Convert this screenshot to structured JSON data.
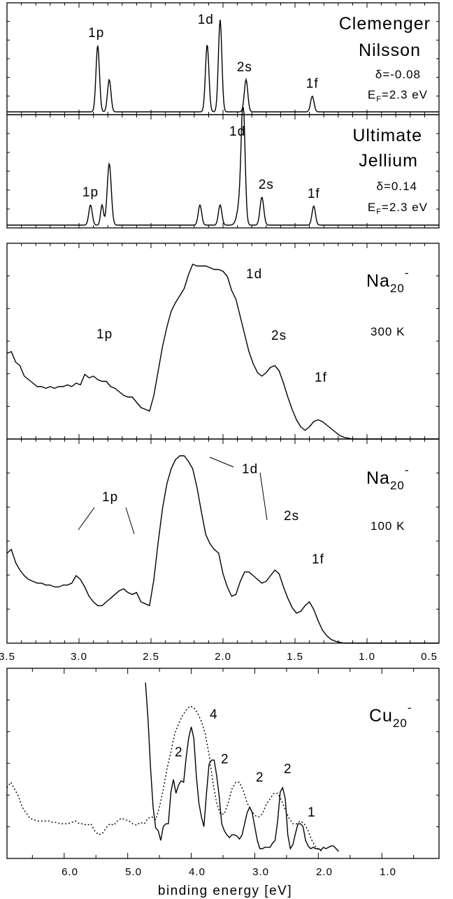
{
  "chart_data": [
    {
      "type": "line",
      "panel": "clemenger-nilsson",
      "annotations": [
        "Clemenger",
        "Nilsson"
      ],
      "delta": "δ=-0.08",
      "ef_main": "E",
      "ef_sub": "F",
      "ef_val": "=2.3 eV",
      "x_range": [
        3.5,
        0.5
      ],
      "peaks": [
        {
          "x": 2.87,
          "h": 0.72,
          "w": 0.012
        },
        {
          "x": 2.79,
          "h": 0.35,
          "w": 0.012
        },
        {
          "x": 2.11,
          "h": 0.73,
          "w": 0.012
        },
        {
          "x": 2.02,
          "h": 1.0,
          "w": 0.012
        },
        {
          "x": 1.84,
          "h": 0.35,
          "w": 0.012
        },
        {
          "x": 1.38,
          "h": 0.17,
          "w": 0.012
        }
      ],
      "peak_labels": [
        {
          "x": 2.88,
          "text": "1p"
        },
        {
          "x": 2.12,
          "text": "1d"
        },
        {
          "x": 1.85,
          "text": "2s"
        },
        {
          "x": 1.38,
          "text": "1f"
        }
      ]
    },
    {
      "type": "line",
      "panel": "ultimate-jellium",
      "annotations": [
        "Ultimate",
        "Jellium"
      ],
      "delta": "δ=0.14",
      "ef_main": "E",
      "ef_sub": "F",
      "ef_val": "=2.3 eV",
      "x_range": [
        3.5,
        0.5
      ],
      "peaks": [
        {
          "x": 2.92,
          "h": 0.18,
          "w": 0.012
        },
        {
          "x": 2.79,
          "h": 0.55,
          "w": 0.014
        },
        {
          "x": 2.84,
          "h": 0.18,
          "w": 0.01
        },
        {
          "x": 2.16,
          "h": 0.18,
          "w": 0.012
        },
        {
          "x": 2.02,
          "h": 0.18,
          "w": 0.012
        },
        {
          "x": 1.86,
          "h": 1.0,
          "w": 0.013
        },
        {
          "x": 1.88,
          "h": 0.2,
          "w": 0.02
        },
        {
          "x": 1.73,
          "h": 0.25,
          "w": 0.013
        },
        {
          "x": 1.37,
          "h": 0.17,
          "w": 0.012
        }
      ],
      "peak_labels": [
        {
          "x": 2.92,
          "text": "1p"
        },
        {
          "x": 1.9,
          "text": "1d"
        },
        {
          "x": 1.7,
          "text": "2s"
        },
        {
          "x": 1.37,
          "text": "1f"
        }
      ]
    },
    {
      "type": "line",
      "panel": "na20-300K",
      "species": "Na",
      "species_sub": "20",
      "charge": "-",
      "temperature": "300 K",
      "x_range": [
        3.5,
        0.5
      ],
      "x": [
        3.5,
        3.47,
        3.44,
        3.41,
        3.38,
        3.35,
        3.32,
        3.29,
        3.26,
        3.23,
        3.2,
        3.17,
        3.14,
        3.11,
        3.08,
        3.05,
        3.02,
        2.99,
        2.96,
        2.93,
        2.9,
        2.87,
        2.84,
        2.81,
        2.78,
        2.75,
        2.72,
        2.69,
        2.66,
        2.63,
        2.6,
        2.57,
        2.54,
        2.51,
        2.48,
        2.45,
        2.42,
        2.39,
        2.36,
        2.33,
        2.3,
        2.27,
        2.24,
        2.21,
        2.18,
        2.15,
        2.12,
        2.09,
        2.06,
        2.03,
        2.0,
        1.97,
        1.94,
        1.91,
        1.88,
        1.85,
        1.82,
        1.79,
        1.76,
        1.73,
        1.7,
        1.67,
        1.64,
        1.61,
        1.58,
        1.55,
        1.52,
        1.49,
        1.46,
        1.43,
        1.4,
        1.37,
        1.34,
        1.31,
        1.28,
        1.25,
        1.22,
        1.19,
        1.16,
        1.13,
        1.1,
        1.0,
        0.9,
        0.8,
        0.7,
        0.6,
        0.5
      ],
      "y": [
        0.49,
        0.5,
        0.44,
        0.42,
        0.36,
        0.34,
        0.32,
        0.3,
        0.3,
        0.29,
        0.3,
        0.29,
        0.3,
        0.3,
        0.31,
        0.3,
        0.32,
        0.31,
        0.37,
        0.35,
        0.36,
        0.34,
        0.33,
        0.33,
        0.3,
        0.29,
        0.27,
        0.25,
        0.24,
        0.24,
        0.21,
        0.18,
        0.17,
        0.16,
        0.25,
        0.39,
        0.53,
        0.64,
        0.73,
        0.78,
        0.82,
        0.86,
        0.94,
        1.0,
        0.99,
        0.99,
        0.99,
        0.98,
        0.97,
        0.97,
        0.96,
        0.93,
        0.85,
        0.8,
        0.7,
        0.6,
        0.5,
        0.43,
        0.38,
        0.36,
        0.38,
        0.41,
        0.42,
        0.39,
        0.32,
        0.24,
        0.17,
        0.11,
        0.07,
        0.05,
        0.07,
        0.1,
        0.11,
        0.1,
        0.08,
        0.06,
        0.04,
        0.02,
        0.01,
        0.005,
        0.0,
        0.0,
        0.0,
        0.0,
        0.0,
        0.0,
        0.0
      ],
      "peak_labels": [
        "1p",
        "1d",
        "2s",
        "1f"
      ]
    },
    {
      "type": "line",
      "panel": "na20-100K",
      "species": "Na",
      "species_sub": "20",
      "charge": "-",
      "temperature": "100 K",
      "x_range": [
        3.5,
        0.5
      ],
      "xticks": [
        "3.5",
        "3.0",
        "2.5",
        "2.0",
        "1.5",
        "1.0",
        "0.5"
      ],
      "x": [
        3.5,
        3.47,
        3.44,
        3.41,
        3.38,
        3.35,
        3.32,
        3.29,
        3.26,
        3.23,
        3.2,
        3.17,
        3.14,
        3.11,
        3.08,
        3.05,
        3.02,
        2.99,
        2.96,
        2.93,
        2.9,
        2.87,
        2.84,
        2.81,
        2.78,
        2.75,
        2.72,
        2.69,
        2.66,
        2.63,
        2.6,
        2.57,
        2.54,
        2.51,
        2.48,
        2.45,
        2.42,
        2.39,
        2.36,
        2.33,
        2.3,
        2.27,
        2.24,
        2.21,
        2.18,
        2.15,
        2.12,
        2.09,
        2.06,
        2.03,
        2.0,
        1.97,
        1.94,
        1.91,
        1.88,
        1.85,
        1.82,
        1.79,
        1.76,
        1.73,
        1.7,
        1.67,
        1.64,
        1.61,
        1.58,
        1.55,
        1.52,
        1.49,
        1.46,
        1.43,
        1.4,
        1.37,
        1.34,
        1.31,
        1.28,
        1.25,
        1.22,
        1.19,
        1.16,
        1.13,
        1.1,
        1.0,
        0.9,
        0.8,
        0.7,
        0.6,
        0.5
      ],
      "y": [
        0.48,
        0.5,
        0.43,
        0.39,
        0.36,
        0.34,
        0.33,
        0.32,
        0.32,
        0.31,
        0.31,
        0.3,
        0.3,
        0.31,
        0.31,
        0.32,
        0.36,
        0.34,
        0.3,
        0.25,
        0.22,
        0.2,
        0.2,
        0.22,
        0.24,
        0.26,
        0.28,
        0.29,
        0.27,
        0.26,
        0.27,
        0.22,
        0.21,
        0.2,
        0.34,
        0.54,
        0.72,
        0.85,
        0.93,
        0.98,
        1.0,
        1.0,
        0.97,
        0.93,
        0.83,
        0.7,
        0.58,
        0.53,
        0.5,
        0.48,
        0.37,
        0.3,
        0.25,
        0.26,
        0.33,
        0.38,
        0.38,
        0.36,
        0.34,
        0.32,
        0.33,
        0.36,
        0.39,
        0.37,
        0.3,
        0.24,
        0.19,
        0.16,
        0.17,
        0.2,
        0.22,
        0.18,
        0.12,
        0.07,
        0.04,
        0.02,
        0.01,
        0.005,
        0.0,
        0.0,
        0.0,
        0.0,
        0.0,
        0.0,
        0.0,
        0.0,
        0.0
      ],
      "peak_labels": [
        "1p",
        "1d",
        "2s",
        "1f"
      ]
    },
    {
      "type": "line",
      "panel": "cu20",
      "species": "Cu",
      "species_sub": "20",
      "charge": "-",
      "x_range": [
        6.9,
        0.1
      ],
      "xticks": [
        "6.0",
        "5.0",
        "4.0",
        "3.0",
        "2.0",
        "1.0"
      ],
      "xlabel": "binding energy [eV]",
      "count_labels": [
        "2",
        "4",
        "2",
        "2",
        "2",
        "1"
      ],
      "series": [
        {
          "style": "solid",
          "x": [
            4.72,
            4.68,
            4.64,
            4.6,
            4.56,
            4.52,
            4.48,
            4.44,
            4.4,
            4.36,
            4.32,
            4.28,
            4.24,
            4.2,
            4.16,
            4.12,
            4.08,
            4.04,
            4.0,
            3.96,
            3.92,
            3.88,
            3.84,
            3.8,
            3.76,
            3.72,
            3.68,
            3.64,
            3.6,
            3.56,
            3.52,
            3.48,
            3.44,
            3.4,
            3.36,
            3.32,
            3.28,
            3.24,
            3.2,
            3.16,
            3.12,
            3.08,
            3.04,
            3.0,
            2.96,
            2.92,
            2.88,
            2.84,
            2.8,
            2.76,
            2.72,
            2.68,
            2.64,
            2.6,
            2.56,
            2.52,
            2.48,
            2.44,
            2.4,
            2.36,
            2.32,
            2.28,
            2.24,
            2.2,
            2.16,
            2.12,
            2.08,
            2.04,
            2.0,
            1.96,
            1.92,
            1.88,
            1.84,
            1.8,
            1.76,
            1.72,
            1.68
          ],
          "y": [
            1.22,
            0.95,
            0.6,
            0.32,
            0.17,
            0.15,
            0.08,
            0.18,
            0.2,
            0.2,
            0.43,
            0.52,
            0.42,
            0.48,
            0.51,
            0.5,
            0.68,
            0.82,
            0.9,
            0.82,
            0.55,
            0.35,
            0.25,
            0.18,
            0.42,
            0.63,
            0.66,
            0.66,
            0.55,
            0.4,
            0.2,
            0.15,
            0.12,
            0.1,
            0.12,
            0.12,
            0.11,
            0.09,
            0.12,
            0.2,
            0.28,
            0.32,
            0.28,
            0.18,
            0.08,
            0.02,
            0.02,
            0.03,
            0.03,
            0.03,
            0.06,
            0.08,
            0.22,
            0.43,
            0.46,
            0.38,
            0.12,
            0.02,
            0.05,
            0.13,
            0.2,
            0.2,
            0.18,
            0.08,
            0.04,
            0.02,
            0.03,
            0.02,
            0.02,
            0.01,
            0.03,
            0.02,
            0.03,
            0.04,
            0.04,
            0.02,
            0.0
          ]
        },
        {
          "style": "dotted",
          "x": [
            6.9,
            6.84,
            6.78,
            6.72,
            6.66,
            6.6,
            6.54,
            6.48,
            6.42,
            6.36,
            6.3,
            6.24,
            6.18,
            6.12,
            6.06,
            6.0,
            5.94,
            5.88,
            5.82,
            5.76,
            5.7,
            5.64,
            5.58,
            5.52,
            5.46,
            5.4,
            5.34,
            5.28,
            5.22,
            5.16,
            5.1,
            5.04,
            4.98,
            4.92,
            4.86,
            4.8,
            4.74,
            4.68,
            4.62,
            4.56,
            4.5,
            4.44,
            4.38,
            4.32,
            4.26,
            4.2,
            4.14,
            4.08,
            4.02,
            3.96,
            3.9,
            3.84,
            3.78,
            3.72,
            3.66,
            3.6,
            3.54,
            3.48,
            3.42,
            3.36,
            3.3,
            3.24,
            3.18,
            3.12,
            3.06,
            3.0,
            2.94,
            2.88,
            2.82,
            2.76,
            2.7,
            2.64,
            2.58,
            2.52,
            2.46,
            2.4,
            2.34,
            2.28,
            2.22,
            2.16,
            2.1,
            2.04,
            1.98,
            1.92
          ],
          "y": [
            0.46,
            0.5,
            0.45,
            0.4,
            0.32,
            0.28,
            0.24,
            0.23,
            0.22,
            0.22,
            0.22,
            0.22,
            0.21,
            0.21,
            0.2,
            0.2,
            0.2,
            0.21,
            0.22,
            0.2,
            0.2,
            0.19,
            0.2,
            0.15,
            0.12,
            0.13,
            0.17,
            0.2,
            0.19,
            0.22,
            0.24,
            0.23,
            0.22,
            0.2,
            0.19,
            0.21,
            0.2,
            0.24,
            0.25,
            0.23,
            0.32,
            0.45,
            0.6,
            0.72,
            0.85,
            0.92,
            0.98,
            1.02,
            1.05,
            1.04,
            1.0,
            0.94,
            0.85,
            0.7,
            0.5,
            0.35,
            0.27,
            0.27,
            0.35,
            0.45,
            0.5,
            0.5,
            0.44,
            0.35,
            0.3,
            0.26,
            0.25,
            0.27,
            0.34,
            0.38,
            0.42,
            0.42,
            0.37,
            0.3,
            0.24,
            0.2,
            0.2,
            0.22,
            0.2,
            0.15,
            0.08,
            0.03,
            0.01,
            0.0
          ]
        }
      ]
    }
  ]
}
